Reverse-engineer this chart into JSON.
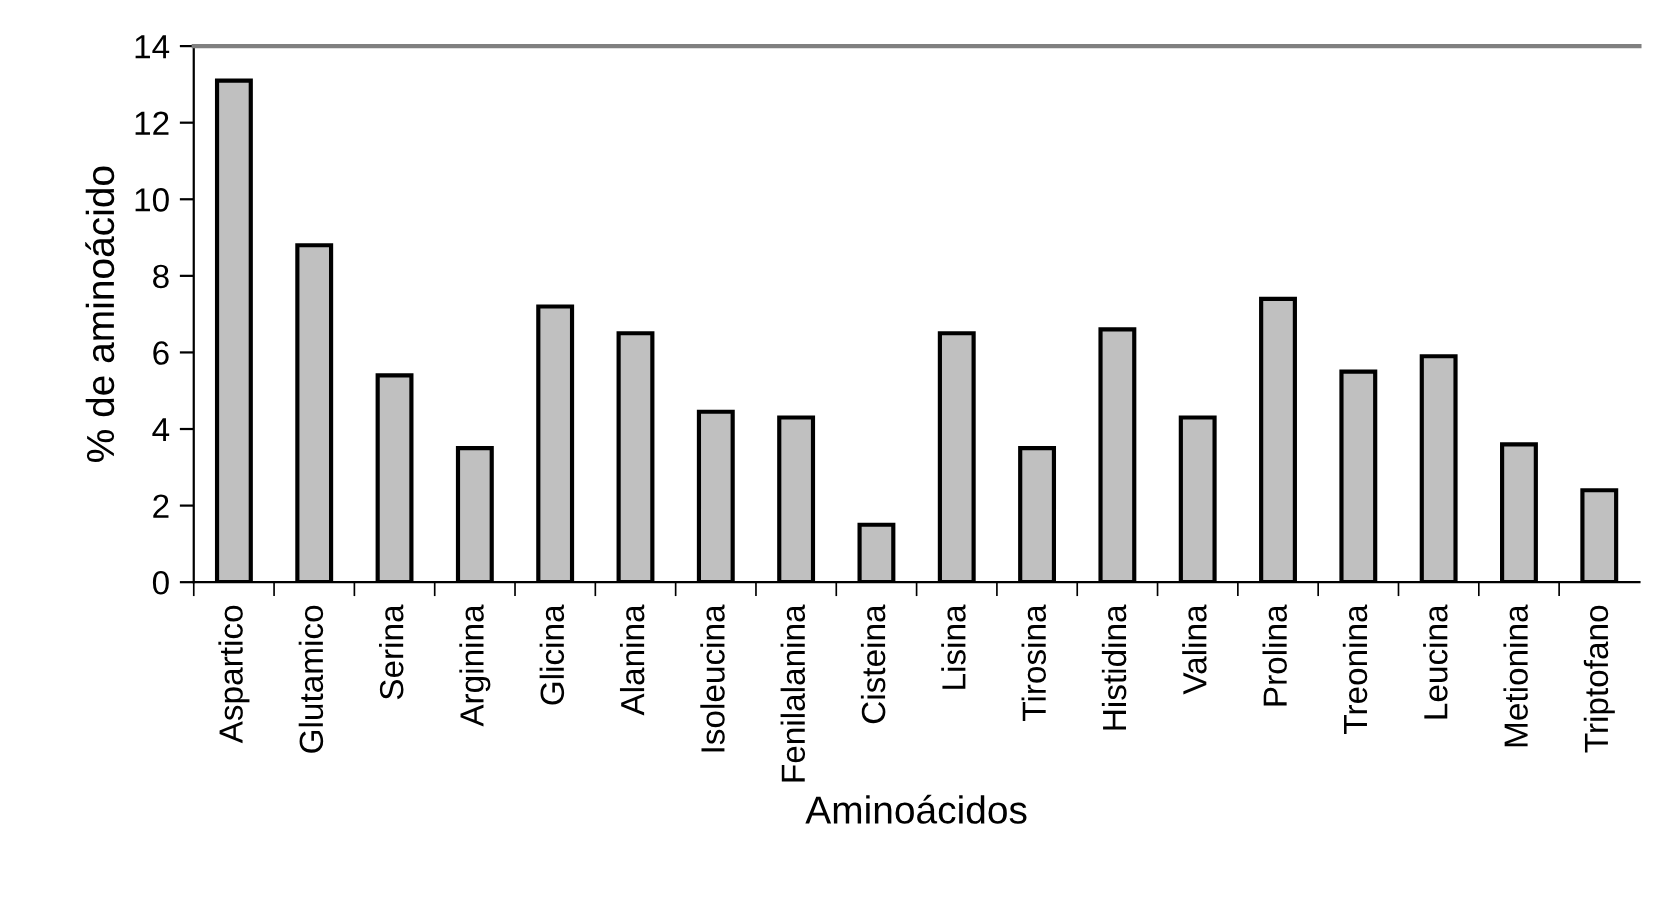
{
  "chart_data": {
    "type": "bar",
    "xlabel": "Aminoácidos",
    "ylabel": "% de aminoácido",
    "categories": [
      "Aspartico",
      "Glutamico",
      "Serina",
      "Arginina",
      "Glicina",
      "Alanina",
      "Isoleucina",
      "Fenilalanina",
      "Cisteina",
      "Lisina",
      "Tirosina",
      "Histidina",
      "Valina",
      "Prolina",
      "Treonina",
      "Leucina",
      "Metionina",
      "Triptofano"
    ],
    "values": [
      13.1,
      8.8,
      5.4,
      3.5,
      7.2,
      6.5,
      4.45,
      4.3,
      1.5,
      6.5,
      3.5,
      6.6,
      4.3,
      7.4,
      5.5,
      5.9,
      3.6,
      2.4
    ],
    "color": "#c0c0c0",
    "ylim": [
      0,
      14
    ],
    "yticks": [
      0,
      2,
      4,
      6,
      8,
      10,
      12,
      14
    ],
    "grid": false,
    "legend": false
  }
}
